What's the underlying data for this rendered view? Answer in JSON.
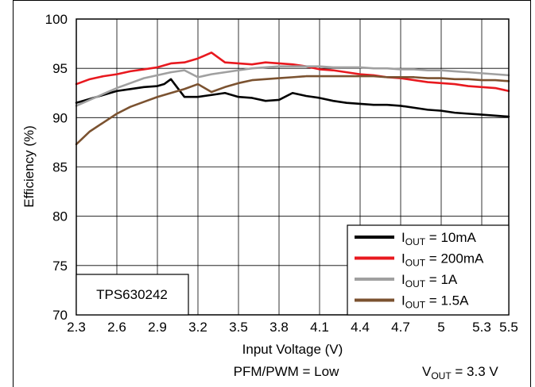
{
  "chart_data": {
    "type": "line",
    "xlabel": "Input Voltage (V)",
    "ylabel": "Efficiency (%)",
    "xlim": [
      2.3,
      5.5
    ],
    "ylim": [
      70,
      100
    ],
    "xticks": [
      2.3,
      2.6,
      2.9,
      3.2,
      3.5,
      3.8,
      4.1,
      4.4,
      4.7,
      5,
      5.3,
      5.5
    ],
    "xtick_labels": [
      "2.3",
      "2.6",
      "2.9",
      "3.2",
      "3.5",
      "3.8",
      "4.1",
      "4.4",
      "4.7",
      "5",
      "5.3",
      "5.5"
    ],
    "yticks": [
      70,
      75,
      80,
      85,
      90,
      95,
      100
    ],
    "ytick_labels": [
      "70",
      "75",
      "80",
      "85",
      "90",
      "95",
      "100"
    ],
    "grid": true,
    "legend_position": "bottom-right",
    "device_label": "TPS630242",
    "footer_left": "PFM/PWM = Low",
    "footer_right": {
      "main": "V",
      "sub": "OUT",
      "rest": " = 3.3 V"
    },
    "series": [
      {
        "name": "IOUT = 10mA",
        "legend": {
          "main": "I",
          "sub": "OUT",
          "rest": " = 10mA"
        },
        "color": "#000000",
        "x": [
          2.3,
          2.4,
          2.5,
          2.6,
          2.7,
          2.8,
          2.9,
          2.95,
          3.0,
          3.05,
          3.1,
          3.2,
          3.3,
          3.4,
          3.5,
          3.6,
          3.7,
          3.8,
          3.9,
          4.0,
          4.1,
          4.2,
          4.3,
          4.4,
          4.5,
          4.6,
          4.7,
          4.8,
          4.9,
          5.0,
          5.1,
          5.2,
          5.3,
          5.4,
          5.5
        ],
        "y": [
          91.5,
          91.9,
          92.3,
          92.7,
          92.9,
          93.1,
          93.2,
          93.4,
          93.9,
          93.0,
          92.1,
          92.1,
          92.3,
          92.5,
          92.1,
          92.0,
          91.7,
          91.8,
          92.5,
          92.2,
          92.0,
          91.7,
          91.5,
          91.4,
          91.3,
          91.3,
          91.2,
          91.0,
          90.8,
          90.7,
          90.5,
          90.4,
          90.3,
          90.2,
          90.1
        ]
      },
      {
        "name": "IOUT = 200mA",
        "legend": {
          "main": "I",
          "sub": "OUT",
          "rest": " = 200mA"
        },
        "color": "#e8191f",
        "x": [
          2.3,
          2.4,
          2.5,
          2.6,
          2.7,
          2.8,
          2.9,
          3.0,
          3.1,
          3.2,
          3.3,
          3.4,
          3.5,
          3.6,
          3.7,
          3.8,
          3.9,
          4.0,
          4.1,
          4.2,
          4.3,
          4.4,
          4.5,
          4.6,
          4.7,
          4.8,
          4.9,
          5.0,
          5.1,
          5.2,
          5.3,
          5.4,
          5.5
        ],
        "y": [
          93.4,
          93.9,
          94.2,
          94.4,
          94.7,
          94.9,
          95.1,
          95.5,
          95.6,
          96.0,
          96.6,
          95.6,
          95.5,
          95.4,
          95.6,
          95.5,
          95.4,
          95.2,
          94.9,
          94.8,
          94.6,
          94.4,
          94.3,
          94.1,
          94.0,
          93.8,
          93.6,
          93.5,
          93.4,
          93.2,
          93.1,
          93.0,
          92.7
        ]
      },
      {
        "name": "IOUT = 1A",
        "legend": {
          "main": "I",
          "sub": "OUT",
          "rest": " = 1A"
        },
        "color": "#a0a0a0",
        "x": [
          2.3,
          2.4,
          2.5,
          2.6,
          2.7,
          2.8,
          2.9,
          3.0,
          3.1,
          3.2,
          3.3,
          3.4,
          3.5,
          3.6,
          3.7,
          3.8,
          3.9,
          4.0,
          4.1,
          4.2,
          4.3,
          4.4,
          4.5,
          4.6,
          4.7,
          4.8,
          4.9,
          5.0,
          5.1,
          5.2,
          5.3,
          5.4,
          5.5
        ],
        "y": [
          91.2,
          91.8,
          92.4,
          93.0,
          93.5,
          94.0,
          94.3,
          94.6,
          94.8,
          94.1,
          94.4,
          94.6,
          94.8,
          95.0,
          95.1,
          95.2,
          95.2,
          95.2,
          95.2,
          95.1,
          95.1,
          95.1,
          95.0,
          95.0,
          94.9,
          94.9,
          94.8,
          94.8,
          94.7,
          94.6,
          94.5,
          94.4,
          94.3
        ]
      },
      {
        "name": "IOUT = 1.5A",
        "legend": {
          "main": "I",
          "sub": "OUT",
          "rest": " = 1.5A"
        },
        "color": "#7b5230",
        "x": [
          2.3,
          2.4,
          2.5,
          2.6,
          2.7,
          2.8,
          2.9,
          3.0,
          3.1,
          3.2,
          3.3,
          3.4,
          3.5,
          3.6,
          3.7,
          3.8,
          3.9,
          4.0,
          4.1,
          4.2,
          4.3,
          4.4,
          4.5,
          4.6,
          4.7,
          4.8,
          4.9,
          5.0,
          5.1,
          5.2,
          5.3,
          5.4,
          5.5
        ],
        "y": [
          87.3,
          88.6,
          89.5,
          90.4,
          91.1,
          91.6,
          92.1,
          92.5,
          92.9,
          93.4,
          92.6,
          93.1,
          93.5,
          93.8,
          93.9,
          94.0,
          94.1,
          94.2,
          94.2,
          94.2,
          94.2,
          94.2,
          94.2,
          94.1,
          94.1,
          94.1,
          94.0,
          94.0,
          93.9,
          93.9,
          93.8,
          93.8,
          93.7
        ]
      }
    ]
  }
}
